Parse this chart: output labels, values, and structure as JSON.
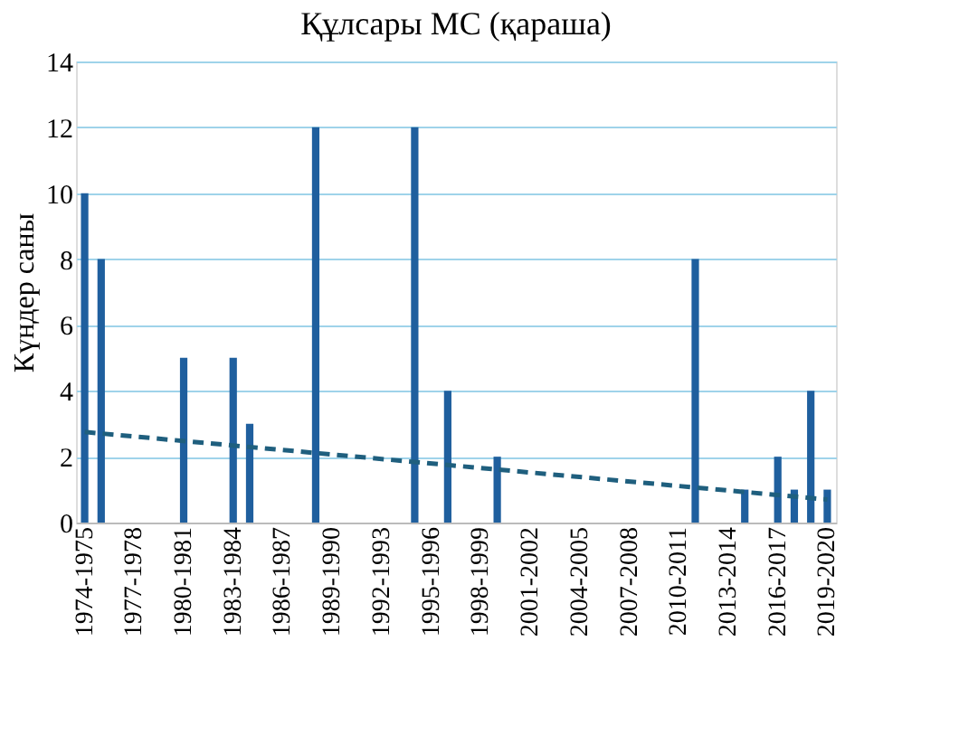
{
  "chart_data": {
    "type": "bar",
    "title": "Құлсары МС (қараша)",
    "ylabel": "Күндер саны",
    "categories": [
      "1974-1975",
      null,
      null,
      "1977-1978",
      null,
      null,
      "1980-1981",
      null,
      null,
      "1983-1984",
      null,
      null,
      "1986-1987",
      null,
      null,
      "1989-1990",
      null,
      null,
      "1992-1993",
      null,
      null,
      "1995-1996",
      null,
      null,
      "1998-1999",
      null,
      null,
      "2001-2002",
      null,
      null,
      "2004-2005",
      null,
      null,
      "2007-2008",
      null,
      null,
      "2010-2011",
      null,
      null,
      "2013-2014",
      null,
      null,
      "2016-2017",
      null,
      null,
      "2019-2020"
    ],
    "series": [
      {
        "color": "#1f5f9e",
        "values": [
          10,
          8,
          0,
          0,
          0,
          0,
          5,
          0,
          0,
          5,
          3,
          0,
          0,
          0,
          12,
          0,
          0,
          0,
          0,
          0,
          12,
          0,
          4,
          0,
          0,
          2,
          0,
          0,
          0,
          0,
          0,
          0,
          0,
          0,
          0,
          0,
          0,
          8,
          0,
          0,
          1,
          0,
          2,
          1,
          4,
          1
        ]
      },
      {
        "type": "line",
        "color": "#1f5f7e",
        "line_style": "dashed",
        "values": [
          2.75,
          null,
          null,
          null,
          null,
          null,
          null,
          null,
          null,
          null,
          null,
          null,
          null,
          null,
          null,
          null,
          null,
          null,
          null,
          null,
          null,
          null,
          null,
          null,
          null,
          null,
          null,
          null,
          null,
          null,
          null,
          null,
          null,
          null,
          null,
          null,
          null,
          null,
          null,
          null,
          null,
          null,
          null,
          null,
          null,
          0.7
        ]
      }
    ],
    "ylim": [
      0,
      14
    ],
    "yticks": [
      0,
      2,
      4,
      6,
      8,
      10,
      12,
      14
    ],
    "grid": "y"
  }
}
